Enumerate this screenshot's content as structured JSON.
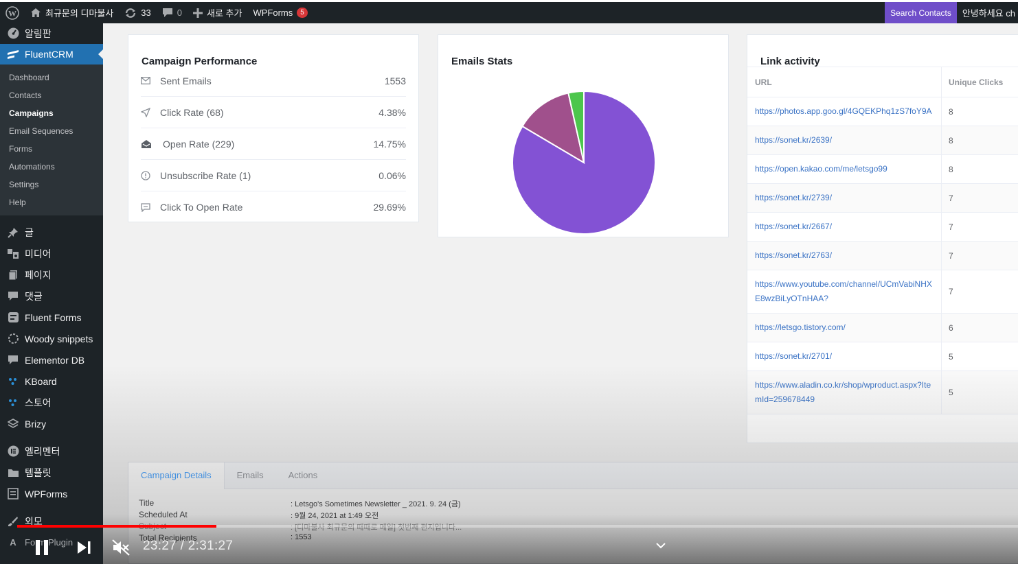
{
  "admin_bar": {
    "site_name": "최규문의 디마불사",
    "updates": "33",
    "comments": "0",
    "new_label": "새로 추가",
    "wpforms_label": "WPForms",
    "wpforms_badge": "5",
    "search_contacts": "Search Contacts",
    "greeting": "안녕하세요 ch"
  },
  "sidebar": {
    "dashboard": "알림판",
    "fluentcrm": "FluentCRM",
    "submenu": [
      "Dashboard",
      "Contacts",
      "Campaigns",
      "Email Sequences",
      "Forms",
      "Automations",
      "Settings",
      "Help"
    ],
    "current_sub": "Campaigns",
    "items": [
      "글",
      "미디어",
      "페이지",
      "댓글",
      "Fluent Forms",
      "Woody snippets",
      "Elementor DB",
      "KBoard",
      "스토어",
      "Brizy",
      "엘리멘터",
      "템플릿",
      "WPForms",
      "외모",
      "Form Plugin"
    ]
  },
  "performance": {
    "title": "Campaign Performance",
    "rows": [
      {
        "label": "Sent Emails",
        "value": "1553",
        "icon": "envelope-icon"
      },
      {
        "label": "Click Rate (68)",
        "value": "4.38%",
        "icon": "send-icon"
      },
      {
        "label": "Open Rate (229)",
        "value": "14.75%",
        "icon": "open-mail-icon"
      },
      {
        "label": "Unsubscribe Rate (1)",
        "value": "0.06%",
        "icon": "info-icon"
      },
      {
        "label": "Click To Open Rate",
        "value": "29.69%",
        "icon": "chat-icon"
      }
    ]
  },
  "email_stats": {
    "title": "Emails Stats",
    "slices": [
      {
        "value": 83.5,
        "color": "#8352d4"
      },
      {
        "value": 13.0,
        "color": "#a0508c"
      },
      {
        "value": 3.5,
        "color": "#4cc64c"
      }
    ]
  },
  "link_activity": {
    "title": "Link activity",
    "col_url": "URL",
    "col_clicks": "Unique Clicks",
    "rows": [
      {
        "url": "https://photos.app.goo.gl/4GQEKPhq1zS7foY9A",
        "clicks": "8"
      },
      {
        "url": "https://sonet.kr/2639/",
        "clicks": "8"
      },
      {
        "url": "https://open.kakao.com/me/letsgo99",
        "clicks": "8"
      },
      {
        "url": "https://sonet.kr/2739/",
        "clicks": "7"
      },
      {
        "url": "https://sonet.kr/2667/",
        "clicks": "7"
      },
      {
        "url": "https://sonet.kr/2763/",
        "clicks": "7"
      },
      {
        "url": "https://www.youtube.com/channel/UCmVabiNHXE8wzBiLyOTnHAA?",
        "clicks": "7"
      },
      {
        "url": "https://letsgo.tistory.com/",
        "clicks": "6"
      },
      {
        "url": "https://sonet.kr/2701/",
        "clicks": "5"
      },
      {
        "url": "https://www.aladin.co.kr/shop/wproduct.aspx?ItemId=259678449",
        "clicks": "5"
      }
    ]
  },
  "details": {
    "tabs": [
      "Campaign Details",
      "Emails",
      "Actions"
    ],
    "active_tab": "Campaign Details",
    "rows": [
      {
        "label": "Title",
        "value": ": Letsgo's Sometimes Newsletter _ 2021. 9. 24 (금)"
      },
      {
        "label": "Scheduled At",
        "value": ": 9월 24, 2021 at 1:49 오전"
      },
      {
        "label": "Subject",
        "value": ": [디마불사 최규문의 때때로 메일] 첫번째 편지입니다..."
      },
      {
        "label": "Total Recipients",
        "value": ": 1553"
      }
    ]
  },
  "video": {
    "timecode": "23:27 / 2:31:27",
    "progress": 0.199
  }
}
